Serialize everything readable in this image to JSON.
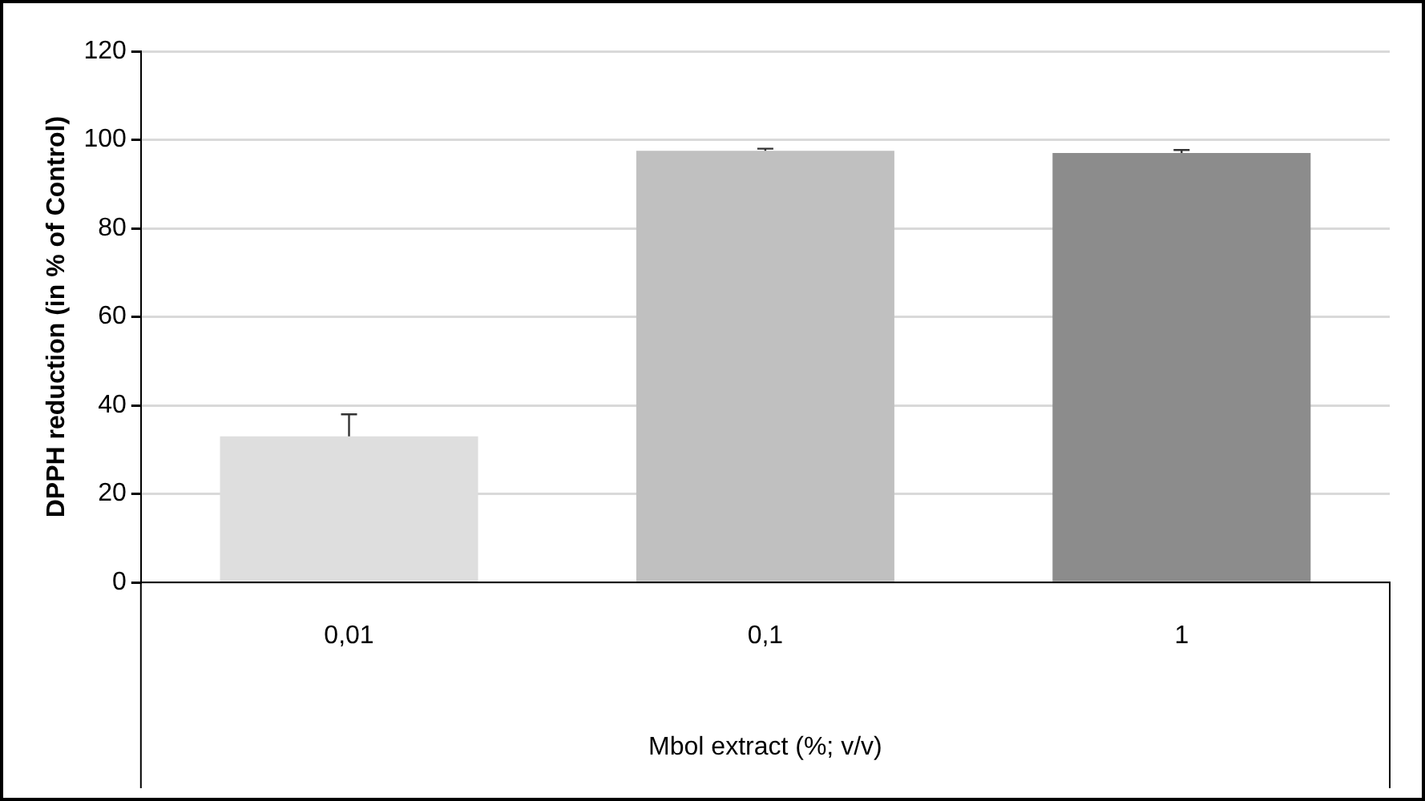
{
  "chart_data": {
    "type": "bar",
    "xlabel": "Mbol extract (%; v/v)",
    "ylabel": "DPPH reduction (in % of Control)",
    "categories": [
      "0,01",
      "0,1",
      "1"
    ],
    "values": [
      33,
      97.5,
      97
    ],
    "colors": [
      "#dedede",
      "#c0c0c0",
      "#8c8c8c"
    ],
    "errors": [
      [
        33,
        38
      ],
      [
        97.5,
        98
      ],
      [
        97,
        97.7
      ]
    ],
    "ylim": [
      0,
      120
    ],
    "yticks": [
      0,
      20,
      40,
      60,
      80,
      100,
      120
    ],
    "grid": "y",
    "legend": false
  }
}
